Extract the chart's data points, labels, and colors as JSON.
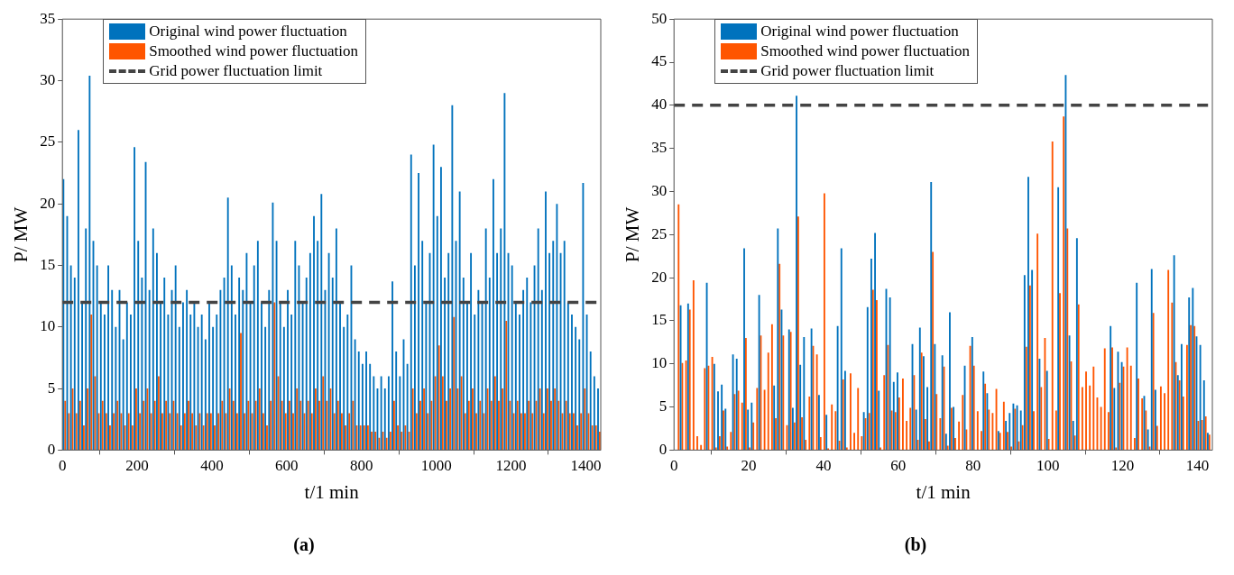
{
  "chart_data": [
    {
      "type": "bar",
      "title": "(a)",
      "xlabel": "t/1 min",
      "ylabel": "P/ MW",
      "xlim": [
        0,
        1440
      ],
      "xticks": [
        0,
        200,
        400,
        600,
        800,
        1000,
        1200,
        1400
      ],
      "ylim": [
        0,
        35
      ],
      "yticks": [
        0,
        5,
        10,
        15,
        20,
        25,
        30,
        35
      ],
      "legend": "top left",
      "x": [
        5,
        15,
        25,
        35,
        45,
        55,
        65,
        75,
        85,
        95,
        105,
        115,
        125,
        135,
        145,
        155,
        165,
        175,
        185,
        195,
        205,
        215,
        225,
        235,
        245,
        255,
        265,
        275,
        285,
        295,
        305,
        315,
        325,
        335,
        345,
        355,
        365,
        375,
        385,
        395,
        405,
        415,
        425,
        435,
        445,
        455,
        465,
        475,
        485,
        495,
        505,
        515,
        525,
        535,
        545,
        555,
        565,
        575,
        585,
        595,
        605,
        615,
        625,
        635,
        645,
        655,
        665,
        675,
        685,
        695,
        705,
        715,
        725,
        735,
        745,
        755,
        765,
        775,
        785,
        795,
        805,
        815,
        825,
        835,
        845,
        855,
        865,
        875,
        885,
        895,
        905,
        915,
        925,
        935,
        945,
        955,
        965,
        975,
        985,
        995,
        1005,
        1015,
        1025,
        1035,
        1045,
        1055,
        1065,
        1075,
        1085,
        1095,
        1105,
        1115,
        1125,
        1135,
        1145,
        1155,
        1165,
        1175,
        1185,
        1195,
        1205,
        1215,
        1225,
        1235,
        1245,
        1255,
        1265,
        1275,
        1285,
        1295,
        1305,
        1315,
        1325,
        1335,
        1345,
        1355,
        1365,
        1375,
        1385,
        1395,
        1405,
        1415,
        1425,
        1435
      ],
      "series": [
        {
          "name": "Original wind power fluctuation",
          "color": "#0072bd",
          "values": [
            22,
            19,
            15,
            14,
            26,
            12,
            18,
            30.4,
            17,
            15,
            12,
            11,
            15,
            13,
            10,
            13,
            9,
            12,
            11,
            24.6,
            17,
            14,
            23.4,
            13,
            18,
            16,
            12,
            14,
            11,
            13,
            15,
            10,
            12,
            13,
            11,
            12,
            10,
            11,
            9,
            12,
            10,
            11,
            13,
            14,
            20.5,
            15,
            11,
            14,
            13,
            16,
            12,
            15,
            17,
            12,
            10,
            13,
            20.1,
            17,
            12,
            10,
            13,
            11,
            17,
            15,
            12,
            14,
            16,
            19,
            17,
            20.8,
            13,
            16,
            14,
            18,
            12,
            10,
            11,
            15,
            9,
            8,
            7,
            8,
            7,
            6,
            5,
            6,
            5,
            6,
            13.7,
            8,
            6,
            9,
            7,
            24,
            15,
            22.5,
            17,
            12,
            16,
            24.8,
            19,
            23,
            14,
            16,
            28,
            17,
            21,
            14,
            12,
            16,
            11,
            13,
            12,
            18,
            14,
            22,
            16,
            18,
            29,
            16,
            15,
            12,
            11,
            13,
            14,
            12,
            15,
            18,
            13,
            21,
            16,
            17,
            20,
            16,
            17,
            12,
            11,
            10,
            9,
            21.7,
            11,
            8,
            6,
            5
          ]
        },
        {
          "name": "Smoothed wind power fluctuation",
          "color": "#ff5500",
          "values": [
            4,
            3,
            5,
            3,
            4,
            2,
            5,
            11,
            6,
            3,
            4,
            3,
            2,
            3,
            4,
            3,
            2,
            3,
            2,
            5,
            3,
            4,
            5,
            3,
            4,
            6,
            3,
            4,
            3,
            4,
            3,
            2,
            3,
            4,
            3,
            2,
            3,
            2,
            3,
            3,
            2,
            3,
            4,
            3,
            5,
            4,
            3,
            9.5,
            3,
            4,
            3,
            4,
            5,
            3,
            2,
            4,
            12,
            6,
            4,
            3,
            4,
            3,
            5,
            4,
            3,
            4,
            3,
            5,
            4,
            6,
            4,
            5,
            3,
            4,
            3,
            2,
            3,
            4,
            2,
            2,
            2,
            2,
            1.5,
            1.5,
            1,
            1.5,
            1,
            1.5,
            4,
            2,
            1.5,
            2,
            1.5,
            5,
            3,
            4,
            5,
            3,
            4,
            6,
            8.5,
            6,
            4,
            5,
            10.8,
            5,
            6,
            3,
            4,
            5,
            3,
            4,
            3,
            5,
            4,
            6,
            4,
            5,
            10.5,
            4,
            3,
            4,
            3,
            3,
            4,
            3,
            4,
            5,
            3,
            5,
            4,
            5,
            4,
            3,
            4,
            3,
            3,
            2,
            3,
            5,
            3,
            2,
            2,
            1.5
          ]
        }
      ],
      "ref_lines": [
        {
          "axis": "y",
          "value": 12,
          "label": "Grid power fluctuation limit",
          "color": "#444444",
          "line_style": "dashed"
        }
      ]
    },
    {
      "type": "bar",
      "title": "(b)",
      "xlabel": "t/1 min",
      "ylabel": "P/ MW",
      "xlim": [
        0,
        144
      ],
      "xticks": [
        0,
        20,
        40,
        60,
        80,
        100,
        120,
        140
      ],
      "ylim": [
        0,
        50
      ],
      "yticks": [
        0,
        5,
        10,
        15,
        20,
        25,
        30,
        35,
        40,
        45,
        50
      ],
      "legend": "top left",
      "x": [
        1,
        2,
        3,
        4,
        5,
        6,
        7,
        8,
        9,
        10,
        11,
        12,
        13,
        14,
        15,
        16,
        17,
        18,
        19,
        20,
        21,
        22,
        23,
        24,
        25,
        26,
        27,
        28,
        29,
        30,
        31,
        32,
        33,
        34,
        35,
        36,
        37,
        38,
        39,
        40,
        41,
        42,
        43,
        44,
        45,
        46,
        47,
        48,
        49,
        50,
        51,
        52,
        53,
        54,
        55,
        56,
        57,
        58,
        59,
        60,
        61,
        62,
        63,
        64,
        65,
        66,
        67,
        68,
        69,
        70,
        71,
        72,
        73,
        74,
        75,
        76,
        77,
        78,
        79,
        80,
        81,
        82,
        83,
        84,
        85,
        86,
        87,
        88,
        89,
        90,
        91,
        92,
        93,
        94,
        95,
        96,
        97,
        98,
        99,
        100,
        101,
        102,
        103,
        104,
        105,
        106,
        107,
        108,
        109,
        110,
        111,
        112,
        113,
        114,
        115,
        116,
        117,
        118,
        119,
        120,
        121,
        122,
        123,
        124,
        125,
        126,
        127,
        128,
        129,
        130,
        131,
        132,
        133,
        134,
        135,
        136,
        137,
        138,
        139,
        140,
        141,
        142,
        143
      ],
      "series": [
        {
          "name": "Original wind power fluctuation",
          "color": "#0072bd",
          "values": [
            null,
            16.8,
            null,
            17.0,
            null,
            null,
            null,
            null,
            19.4,
            null,
            10.0,
            6.8,
            7.6,
            4.8,
            null,
            11.1,
            10.6,
            null,
            23.4,
            4.7,
            5.5,
            null,
            18.0,
            null,
            null,
            null,
            7.5,
            25.7,
            16.3,
            null,
            14.0,
            4.9,
            41.1,
            9.9,
            13.1,
            null,
            14.1,
            null,
            6.4,
            null,
            4.1,
            null,
            null,
            14.4,
            23.4,
            9.2,
            null,
            null,
            null,
            null,
            4.4,
            16.6,
            22.2,
            25.2,
            6.9,
            null,
            18.7,
            17.7,
            7.9,
            9.0,
            null,
            null,
            null,
            12.3,
            4.7,
            14.2,
            10.9,
            7.3,
            31.1,
            12.3,
            null,
            11.0,
            1.9,
            16.0,
            5.0,
            null,
            null,
            9.8,
            null,
            13.1,
            null,
            null,
            9.1,
            6.6,
            null,
            null,
            2.2,
            null,
            3.4,
            4.3,
            5.4,
            5.2,
            4.6,
            20.3,
            31.7,
            20.9,
            null,
            10.6,
            null,
            9.2,
            null,
            null,
            30.5,
            null,
            43.5,
            13.3,
            3.4,
            24.6,
            null,
            null,
            null,
            null,
            null,
            null,
            null,
            null,
            14.4,
            7.2,
            11.4,
            10.2,
            null,
            null,
            null,
            19.4,
            null,
            6.3,
            2.4,
            21.0,
            7.0,
            null,
            null,
            null,
            null,
            22.6,
            8.7,
            12.3,
            null,
            17.7,
            18.8,
            13.2,
            12.2,
            8.1,
            2.0
          ]
        },
        {
          "name": "Smoothed wind power fluctuation",
          "color": "#ff5500",
          "values": [
            28.5,
            10.1,
            10.4,
            16.3,
            19.7,
            1.6,
            0.6,
            9.5,
            9.8,
            10.8,
            0.3,
            1.6,
            4.6,
            0.4,
            2.1,
            6.5,
            6.9,
            5.5,
            13.0,
            0.3,
            3.2,
            7.2,
            13.3,
            7.0,
            11.3,
            14.6,
            3.7,
            21.6,
            13.3,
            2.9,
            13.7,
            3.2,
            27.1,
            3.8,
            1.2,
            6.2,
            12.1,
            11.1,
            1.5,
            29.8,
            0.2,
            5.3,
            4.5,
            1.1,
            8.2,
            0.3,
            8.9,
            2.0,
            7.2,
            1.6,
            3.7,
            4.3,
            18.6,
            17.4,
            0.3,
            8.7,
            12.2,
            4.6,
            4.4,
            6.1,
            8.3,
            3.4,
            4.9,
            8.7,
            1.2,
            11.3,
            3.6,
            1.0,
            23.0,
            6.5,
            3.7,
            9.7,
            0.5,
            4.9,
            1.4,
            3.3,
            6.4,
            2.4,
            12.1,
            9.8,
            4.5,
            2.2,
            7.7,
            4.7,
            4.3,
            7.1,
            2.0,
            5.6,
            2.1,
            0.4,
            4.8,
            1.0,
            2.9,
            12.0,
            19.1,
            4.5,
            25.1,
            7.3,
            13.0,
            1.3,
            35.8,
            4.6,
            18.2,
            38.7,
            25.7,
            10.3,
            1.7,
            16.9,
            7.3,
            9.1,
            7.5,
            9.7,
            6.1,
            5.0,
            11.8,
            4.4,
            11.9,
            0.3,
            7.8,
            9.7,
            11.9,
            9.8,
            1.4,
            8.3,
            6.0,
            4.6,
            0.4,
            15.9,
            2.8,
            7.4,
            6.6,
            20.9,
            17.1,
            10.2,
            8.1,
            6.2,
            12.2,
            14.5,
            14.4,
            3.4,
            3.5,
            3.9,
            1.8
          ]
        }
      ],
      "ref_lines": [
        {
          "axis": "y",
          "value": 40,
          "label": "Grid power fluctuation limit",
          "color": "#444444",
          "line_style": "dashed"
        }
      ]
    }
  ]
}
